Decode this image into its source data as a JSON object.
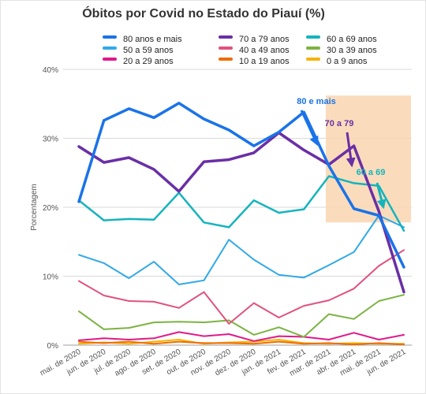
{
  "chart_data": {
    "type": "line",
    "title": "Óbitos por Covid no Estado do Piauí (%)",
    "xlabel": "",
    "ylabel": "Porcentagem",
    "ylim": [
      0,
      40
    ],
    "yticks": [
      "0%",
      "10%",
      "20%",
      "30%",
      "40%"
    ],
    "grid": true,
    "legend_position": "top",
    "categories": [
      "mai. de 2020",
      "jun. de 2020",
      "jul. de 2020",
      "ago. de 2020",
      "set. de 2020",
      "out. de 2020",
      "nov. de 2020",
      "dez. de 2020",
      "jan. de 2021",
      "fev. de 2021",
      "mar. de 2021",
      "abr. de 2021",
      "mai. de 2021",
      "jun. de 2021"
    ],
    "series": [
      {
        "name": "80 anos e mais",
        "color": "#1a73e8",
        "width": 3.5,
        "values": [
          20.8,
          32.6,
          34.3,
          33.0,
          35.1,
          32.8,
          31.2,
          28.9,
          30.9,
          33.8,
          26.0,
          19.8,
          18.8,
          11.3
        ]
      },
      {
        "name": "70 a 79 anos",
        "color": "#6a2fa6",
        "width": 3.5,
        "values": [
          28.8,
          26.5,
          27.2,
          25.5,
          22.3,
          26.6,
          26.9,
          27.9,
          30.8,
          28.3,
          26.2,
          28.9,
          19.4,
          7.7
        ]
      },
      {
        "name": "60 a 69 anos",
        "color": "#15b4bd",
        "width": 2.5,
        "values": [
          21.0,
          18.1,
          18.3,
          18.2,
          22.1,
          17.8,
          17.1,
          21.0,
          19.2,
          19.7,
          24.5,
          23.5,
          23.1,
          16.6
        ]
      },
      {
        "name": "50 a 59 anos",
        "color": "#31a9e8",
        "width": 2,
        "values": [
          13.1,
          11.9,
          9.7,
          12.1,
          8.8,
          9.4,
          15.3,
          12.4,
          10.2,
          9.8,
          11.6,
          13.5,
          18.8,
          17.1
        ]
      },
      {
        "name": "40 a 49 anos",
        "color": "#e0527e",
        "width": 2,
        "values": [
          9.3,
          7.2,
          6.4,
          6.3,
          5.4,
          7.7,
          3.1,
          6.1,
          4.0,
          5.7,
          6.5,
          8.2,
          11.5,
          13.8
        ]
      },
      {
        "name": "30 a 39 anos",
        "color": "#7cb342",
        "width": 2,
        "values": [
          4.9,
          2.3,
          2.5,
          3.3,
          3.4,
          3.3,
          3.6,
          1.5,
          2.6,
          1.2,
          4.5,
          3.8,
          6.4,
          7.3
        ]
      },
      {
        "name": "20 a 29 anos",
        "color": "#e0198a",
        "width": 2,
        "values": [
          0.7,
          1.0,
          0.8,
          1.0,
          1.9,
          1.3,
          1.6,
          0.6,
          1.3,
          1.2,
          0.8,
          1.8,
          0.8,
          1.5
        ]
      },
      {
        "name": "10 a 19 anos",
        "color": "#ef6c00",
        "width": 2,
        "values": [
          0.5,
          0.3,
          0.5,
          0.2,
          0.5,
          0.3,
          0.3,
          0.2,
          0.5,
          0.2,
          0.3,
          0.1,
          0.3,
          0.1
        ]
      },
      {
        "name": "0 a 9 anos",
        "color": "#f4b400",
        "width": 2,
        "values": [
          0.2,
          0.4,
          0.2,
          0.5,
          0.8,
          0.2,
          0.4,
          0.5,
          0.8,
          0.3,
          0.2,
          0.3,
          0.2,
          0.2
        ]
      }
    ],
    "highlight": {
      "from_index": 10,
      "to_index": 13,
      "ylim": [
        17.8,
        36.2
      ],
      "color": "#f9d6b0"
    },
    "annotations": [
      {
        "text": "80 e mais",
        "color": "#1a73e8",
        "series_index": 0,
        "at_index": 11
      },
      {
        "text": "70 a 79",
        "color": "#6a2fa6",
        "series_index": 1,
        "at_index": 12
      },
      {
        "text": "60 a 69",
        "color": "#15b4bd",
        "series_index": 2,
        "at_index": 13
      }
    ]
  }
}
